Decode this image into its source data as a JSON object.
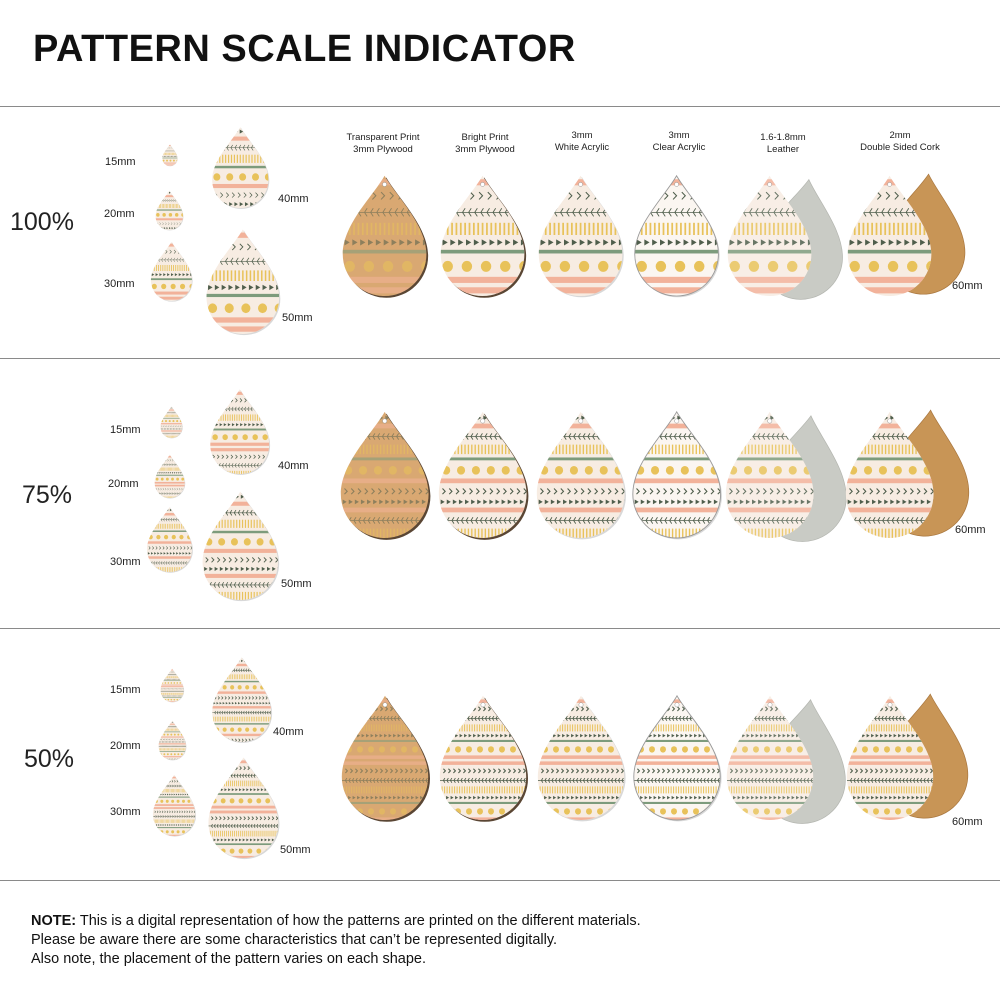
{
  "title": "PATTERN SCALE INDICATOR",
  "materials": [
    {
      "line1": "Transparent Print",
      "line2": "3mm Plywood",
      "type": "plywood-transparent"
    },
    {
      "line1": "Bright Print",
      "line2": "3mm Plywood",
      "type": "plywood-bright"
    },
    {
      "line1": "3mm",
      "line2": "White Acrylic",
      "type": "white-acrylic"
    },
    {
      "line1": "3mm",
      "line2": "Clear Acrylic",
      "type": "clear-acrylic"
    },
    {
      "line1": "1.6-1.8mm",
      "line2": "Leather",
      "type": "leather"
    },
    {
      "line1": "2mm",
      "line2": "Double Sided Cork",
      "type": "cork"
    }
  ],
  "sections": [
    {
      "scale": "100%",
      "sizes": [
        "15mm",
        "20mm",
        "30mm",
        "40mm",
        "50mm"
      ],
      "large_size": "60mm"
    },
    {
      "scale": "75%",
      "sizes": [
        "15mm",
        "20mm",
        "30mm",
        "40mm",
        "50mm"
      ],
      "large_size": "60mm"
    },
    {
      "scale": "50%",
      "sizes": [
        "15mm",
        "20mm",
        "30mm",
        "40mm",
        "50mm"
      ],
      "large_size": "60mm"
    }
  ],
  "note": {
    "label": "NOTE:",
    "line1": "This is a digital representation of how the patterns are printed on the different materials.",
    "line2": "Please be aware there are some characteristics that can’t be represented digitally.",
    "line3": "Also note, the placement of the pattern varies on each shape."
  },
  "colors": {
    "cream": "#f7ece2",
    "peach": "#f2b29a",
    "sage": "#7d9b7c",
    "gold": "#e8c25a",
    "dark_green": "#4f5e4c",
    "wood": "#d9a872",
    "cork": "#c89556",
    "suede": "#c9cbc5"
  }
}
